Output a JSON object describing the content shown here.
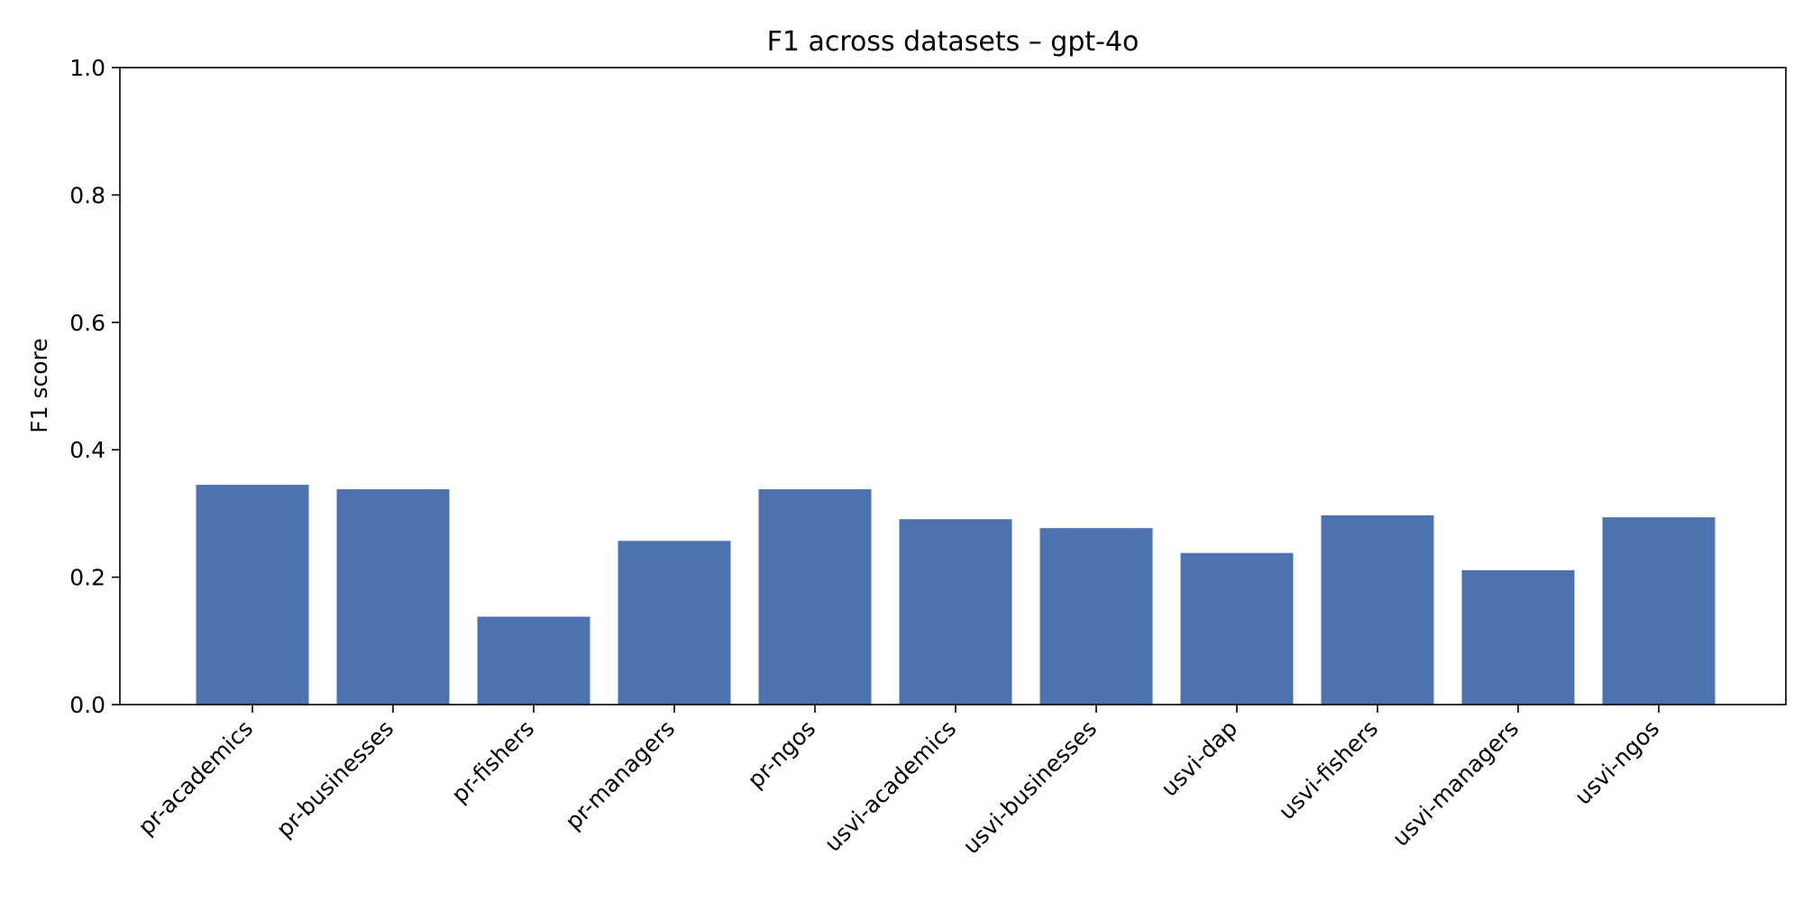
{
  "chart_data": {
    "type": "bar",
    "title": "F1 across datasets – gpt-4o",
    "xlabel": "",
    "ylabel": "F1 score",
    "ylim": [
      0,
      1
    ],
    "yticks": [
      "0.0",
      "0.2",
      "0.4",
      "0.6",
      "0.8",
      "1.0"
    ],
    "categories": [
      "pr-academics",
      "pr-businesses",
      "pr-fishers",
      "pr-managers",
      "pr-ngos",
      "usvi-academics",
      "usvi-businesses",
      "usvi-dap",
      "usvi-fishers",
      "usvi-managers",
      "usvi-ngos"
    ],
    "values": [
      0.345,
      0.338,
      0.138,
      0.257,
      0.338,
      0.291,
      0.277,
      0.238,
      0.297,
      0.211,
      0.294
    ],
    "bar_color": "#4c72b0",
    "grid": false,
    "legend": "none"
  }
}
